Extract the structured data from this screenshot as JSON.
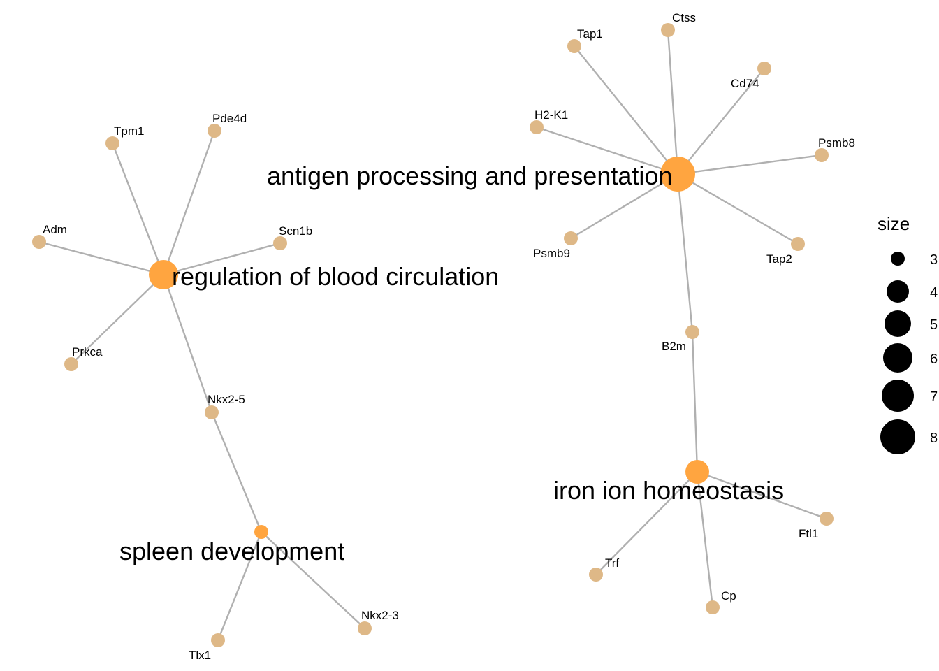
{
  "colors": {
    "edge": "#b0b0b0",
    "gene_node": "#deb887",
    "category_node": "#ffa540",
    "legend_node": "#000000"
  },
  "categories": {
    "antigen": "antigen processing and presentation",
    "blood": "regulation of blood circulation",
    "spleen": "spleen development",
    "iron": "iron ion homeostasis"
  },
  "genes": {
    "tap1": "Tap1",
    "ctss": "Ctss",
    "cd74": "Cd74",
    "h2k1": "H2-K1",
    "psmb8": "Psmb8",
    "psmb9": "Psmb9",
    "tap2": "Tap2",
    "b2m": "B2m",
    "tpm1": "Tpm1",
    "pde4d": "Pde4d",
    "adm": "Adm",
    "scn1b": "Scn1b",
    "prkca": "Prkca",
    "nkx25": "Nkx2-5",
    "tlx1": "Tlx1",
    "nkx23": "Nkx2-3",
    "trf": "Trf",
    "cp": "Cp",
    "ftl1": "Ftl1"
  },
  "legend": {
    "title": "size",
    "items": [
      "3",
      "4",
      "5",
      "6",
      "7",
      "8"
    ]
  }
}
